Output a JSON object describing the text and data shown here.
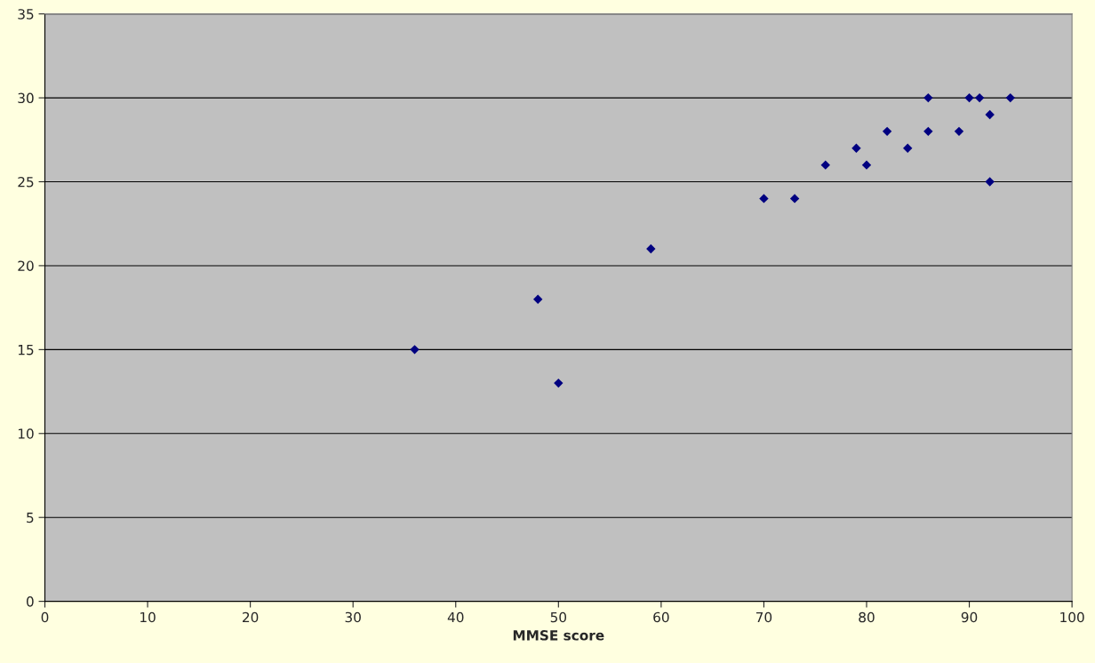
{
  "chart_data": {
    "type": "scatter",
    "xlabel": "MMSE score",
    "x": [
      36,
      48,
      50,
      59,
      70,
      73,
      76,
      79,
      80,
      82,
      84,
      86,
      86,
      89,
      90,
      91,
      92,
      92,
      94
    ],
    "series": [
      {
        "color": "#000080",
        "values": [
          15,
          18,
          13,
          21,
          24,
          24,
          26,
          27,
          26,
          28,
          27,
          30,
          28,
          28,
          30,
          30,
          29,
          25,
          30
        ]
      }
    ],
    "xlim": [
      0,
      100
    ],
    "xticks": [
      0,
      10,
      20,
      30,
      40,
      50,
      60,
      70,
      80,
      90,
      100
    ],
    "ylim": [
      0,
      35
    ],
    "yticks": [
      0,
      5,
      10,
      15,
      20,
      25,
      30,
      35
    ],
    "grid": "y",
    "marker": "diamond"
  }
}
